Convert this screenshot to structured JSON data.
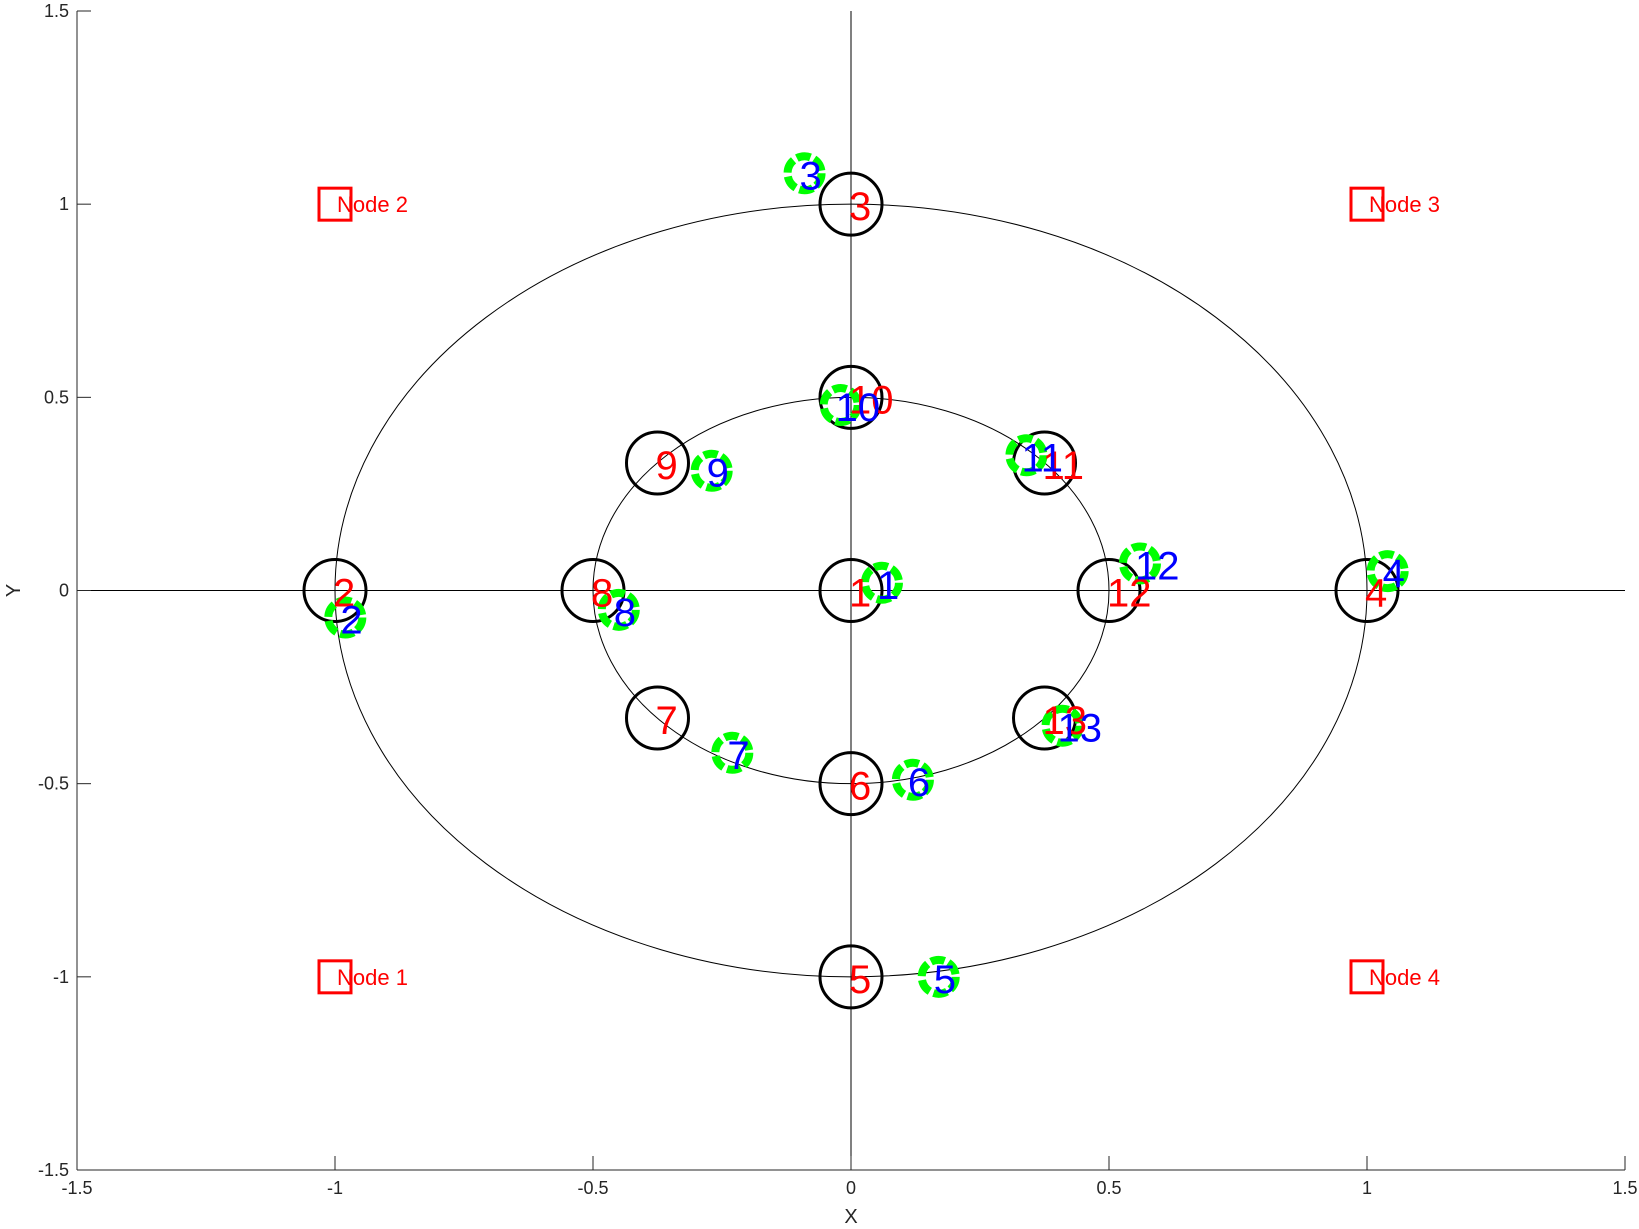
{
  "chart_data": {
    "type": "scatter",
    "title": "",
    "xlabel": "X",
    "ylabel": "Y",
    "xlim": [
      -1.5,
      1.5
    ],
    "ylim": [
      -1.5,
      1.5
    ],
    "xticks": [
      -1.5,
      -1,
      -0.5,
      0,
      0.5,
      1,
      1.5
    ],
    "yticks": [
      -1.5,
      -1,
      -0.5,
      0,
      0.5,
      1,
      1.5
    ],
    "xtick_labels": [
      "-1.5",
      "-1",
      "-0.5",
      "0",
      "0.5",
      "1",
      "1.5"
    ],
    "ytick_labels": [
      "-1.5",
      "-1",
      "-0.5",
      "0",
      "0.5",
      "1",
      "1.5"
    ],
    "grid": false,
    "legend": "none",
    "reference_ellipses": [
      {
        "cx": 0,
        "cy": 0,
        "rx": 1,
        "ry": 1
      },
      {
        "cx": 0,
        "cy": 0,
        "rx": 0.5,
        "ry": 0.5
      }
    ],
    "reference_lines": [
      {
        "orientation": "horizontal",
        "value": 0
      },
      {
        "orientation": "vertical",
        "value": 0
      }
    ],
    "anchor_nodes": [
      {
        "label": "Node 1",
        "x": -1,
        "y": -1
      },
      {
        "label": "Node 2",
        "x": -1,
        "y": 1
      },
      {
        "label": "Node 3",
        "x": 1,
        "y": 1
      },
      {
        "label": "Node 4",
        "x": 1,
        "y": -1
      }
    ],
    "series": [
      {
        "marker": "black-circle",
        "color": "#000000",
        "label_color": "#ff0000",
        "points": [
          {
            "label": "1",
            "x": 0,
            "y": 0
          },
          {
            "label": "2",
            "x": -1,
            "y": 0
          },
          {
            "label": "3",
            "x": 0,
            "y": 1
          },
          {
            "label": "4",
            "x": 1,
            "y": 0
          },
          {
            "label": "5",
            "x": 0,
            "y": -1
          },
          {
            "label": "6",
            "x": 0,
            "y": -0.5
          },
          {
            "label": "7",
            "x": -0.375,
            "y": -0.33
          },
          {
            "label": "8",
            "x": -0.5,
            "y": 0
          },
          {
            "label": "9",
            "x": -0.375,
            "y": 0.33
          },
          {
            "label": "10",
            "x": 0,
            "y": 0.5
          },
          {
            "label": "11",
            "x": 0.375,
            "y": 0.33
          },
          {
            "label": "12",
            "x": 0.5,
            "y": 0
          },
          {
            "label": "13",
            "x": 0.375,
            "y": -0.33
          }
        ]
      },
      {
        "marker": "green-circle",
        "color": "#00ff00",
        "label_color": "#0000ff",
        "points": [
          {
            "label": "1",
            "x": 0.06,
            "y": 0.02
          },
          {
            "label": "2",
            "x": -0.98,
            "y": -0.07
          },
          {
            "label": "3",
            "x": -0.09,
            "y": 1.08
          },
          {
            "label": "4",
            "x": 1.04,
            "y": 0.05
          },
          {
            "label": "5",
            "x": 0.17,
            "y": -1.0
          },
          {
            "label": "6",
            "x": 0.12,
            "y": -0.49
          },
          {
            "label": "7",
            "x": -0.23,
            "y": -0.42
          },
          {
            "label": "8",
            "x": -0.45,
            "y": -0.05
          },
          {
            "label": "9",
            "x": -0.27,
            "y": 0.31
          },
          {
            "label": "10",
            "x": -0.02,
            "y": 0.48
          },
          {
            "label": "11",
            "x": 0.34,
            "y": 0.35
          },
          {
            "label": "12",
            "x": 0.56,
            "y": 0.07
          },
          {
            "label": "13",
            "x": 0.41,
            "y": -0.35
          }
        ]
      }
    ]
  }
}
